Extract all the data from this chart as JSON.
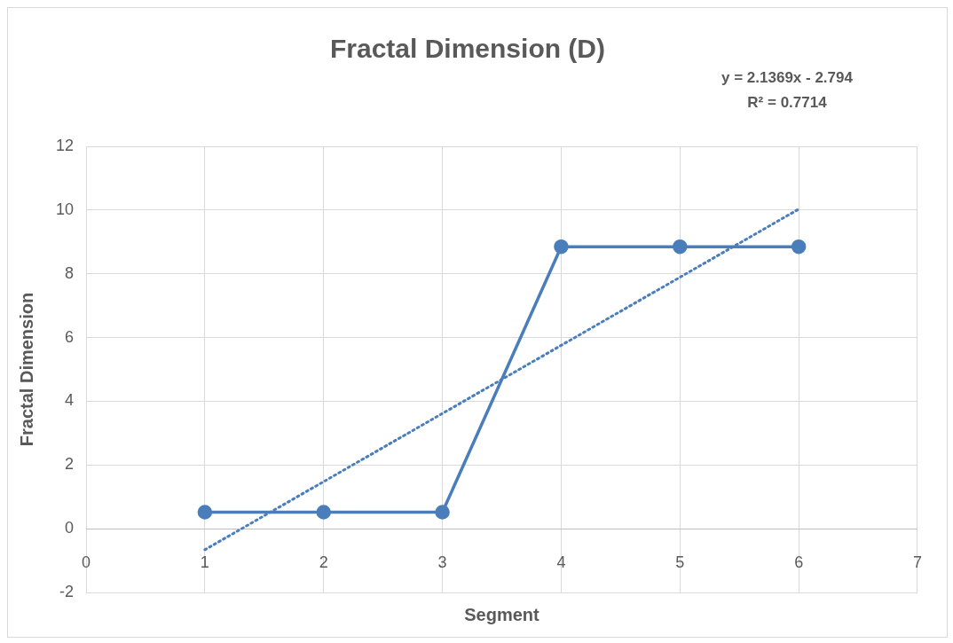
{
  "chart_data": {
    "type": "line",
    "title": "Fractal Dimension (D)",
    "xlabel": "Segment",
    "ylabel": "Fractal Dimension",
    "annotations": [
      "y = 2.1369x - 2.794",
      "R² = 0.7714"
    ],
    "x": [
      1,
      2,
      3,
      4,
      5,
      6
    ],
    "series": [
      {
        "color": "#4a7ebb",
        "values": [
          0.52,
          0.52,
          0.52,
          8.85,
          8.85,
          8.85
        ],
        "marker": "circle",
        "line_style": "solid"
      },
      {
        "type": "line",
        "color": "#4a7ebb",
        "x": [
          1,
          6
        ],
        "values": [
          -0.66,
          10.03
        ],
        "marker": "none",
        "line_style": "dotted"
      }
    ],
    "xlim": [
      0,
      7
    ],
    "xticks": [
      0,
      1,
      2,
      3,
      4,
      5,
      6,
      7
    ],
    "ylim": [
      -2,
      12
    ],
    "yticks": [
      -2,
      0,
      2,
      4,
      6,
      8,
      10,
      12
    ],
    "grid": true,
    "legend": false
  }
}
